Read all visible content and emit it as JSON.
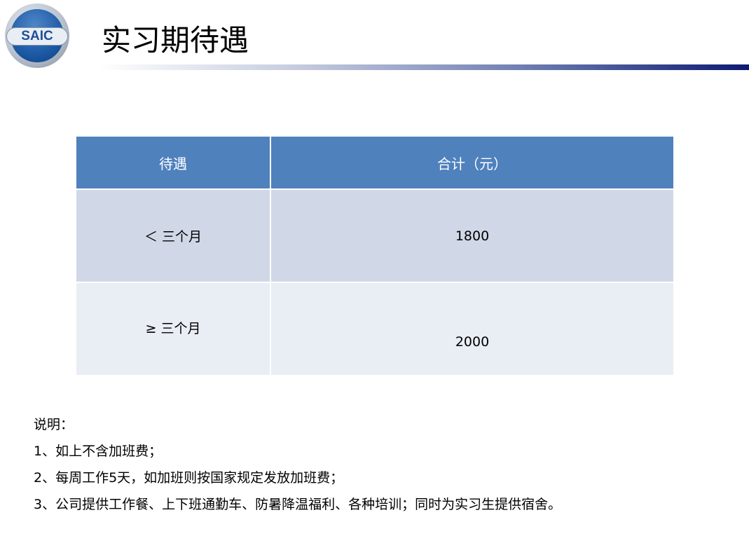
{
  "logo": {
    "text": "SAIC"
  },
  "title": "实习期待遇",
  "table": {
    "headers": [
      "待遇",
      "合计（元）"
    ],
    "rows": [
      [
        "＜ 三个月",
        "1800"
      ],
      [
        "≥ 三个月",
        "2000"
      ]
    ]
  },
  "notes": {
    "heading": "说明：",
    "items": [
      "1、如上不含加班费；",
      "2、每周工作5天，如加班则按国家规定发放加班费；",
      "3、公司提供工作餐、上下班通勤车、防暑降温福利、各种培训；同时为实习生提供宿舍。"
    ]
  },
  "colors": {
    "header": "#4f81bd",
    "row1": "#d0d8e8",
    "row2": "#e9edf4",
    "title_bar_end": "#0c1a72"
  }
}
